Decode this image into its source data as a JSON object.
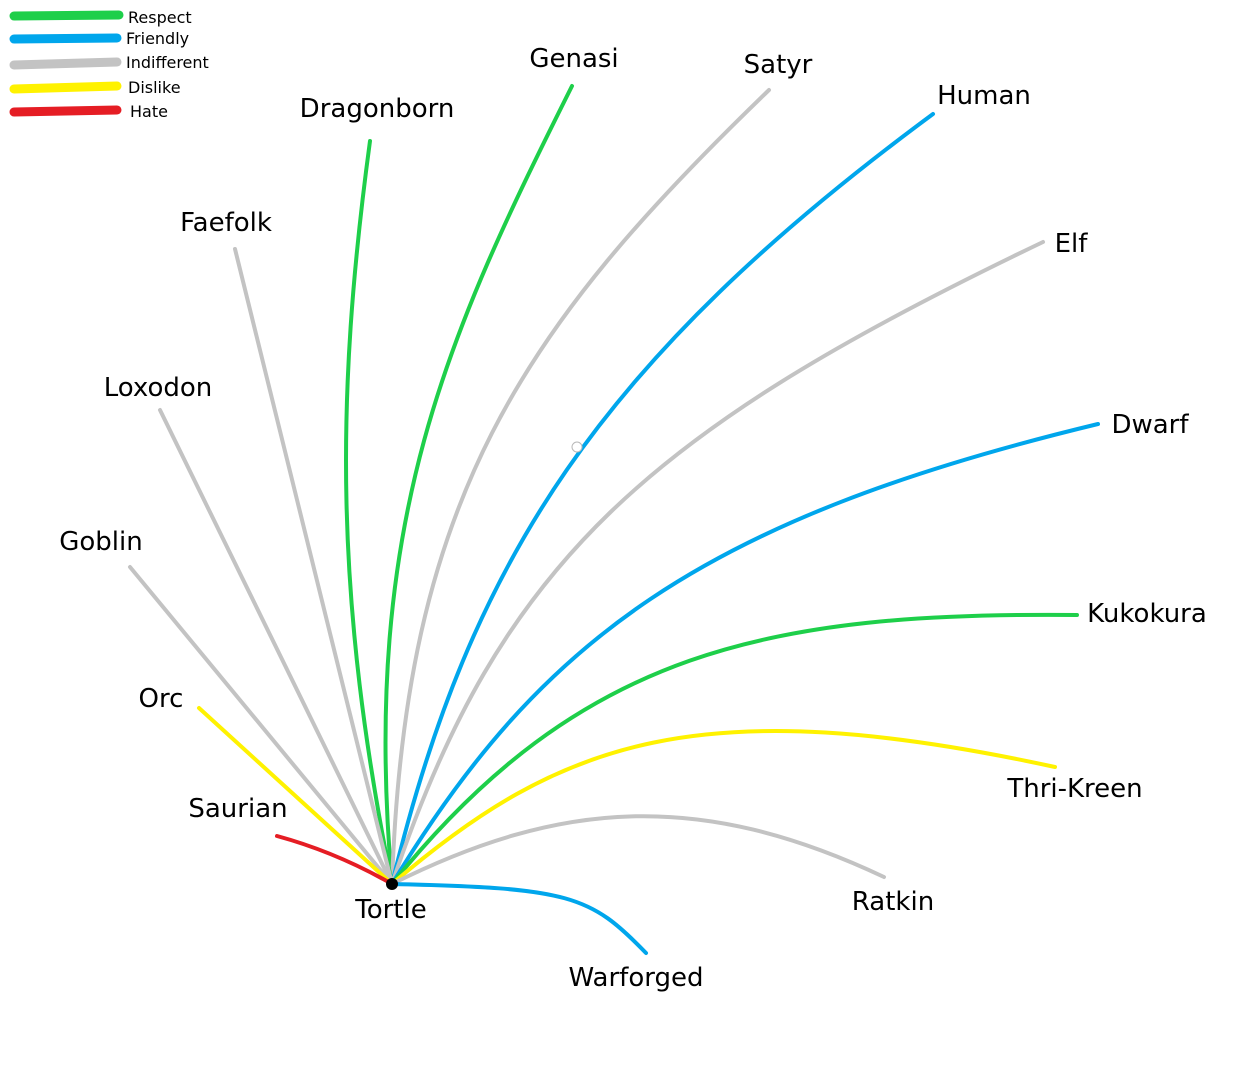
{
  "colors": {
    "respect": "#1ecf4a",
    "friendly": "#00a6ec",
    "indifferent": "#c3c3c3",
    "dislike": "#fff200",
    "hate": "#e51d24",
    "cursor": "#b8b8b8"
  },
  "legend": [
    {
      "key": "respect",
      "label": "Respect"
    },
    {
      "key": "friendly",
      "label": "Friendly"
    },
    {
      "key": "indifferent",
      "label": "Indifferent"
    },
    {
      "key": "dislike",
      "label": "Dislike"
    },
    {
      "key": "hate",
      "label": "Hate"
    }
  ],
  "center": {
    "label": "Tortle"
  },
  "relations": [
    {
      "id": "genasi",
      "label": "Genasi",
      "attitude": "respect"
    },
    {
      "id": "satyr",
      "label": "Satyr",
      "attitude": "indifferent"
    },
    {
      "id": "human",
      "label": "Human",
      "attitude": "friendly"
    },
    {
      "id": "dragonborn",
      "label": "Dragonborn",
      "attitude": "respect"
    },
    {
      "id": "faefolk",
      "label": "Faefolk",
      "attitude": "indifferent"
    },
    {
      "id": "elf",
      "label": "Elf",
      "attitude": "indifferent"
    },
    {
      "id": "loxodon",
      "label": "Loxodon",
      "attitude": "indifferent"
    },
    {
      "id": "dwarf",
      "label": "Dwarf",
      "attitude": "friendly"
    },
    {
      "id": "goblin",
      "label": "Goblin",
      "attitude": "indifferent"
    },
    {
      "id": "kukokura",
      "label": "Kukokura",
      "attitude": "respect"
    },
    {
      "id": "orc",
      "label": "Orc",
      "attitude": "dislike"
    },
    {
      "id": "thri-kreen",
      "label": "Thri-Kreen",
      "attitude": "dislike"
    },
    {
      "id": "saurian",
      "label": "Saurian",
      "attitude": "hate"
    },
    {
      "id": "ratkin",
      "label": "Ratkin",
      "attitude": "indifferent"
    },
    {
      "id": "warforged",
      "label": "Warforged",
      "attitude": "friendly"
    }
  ]
}
